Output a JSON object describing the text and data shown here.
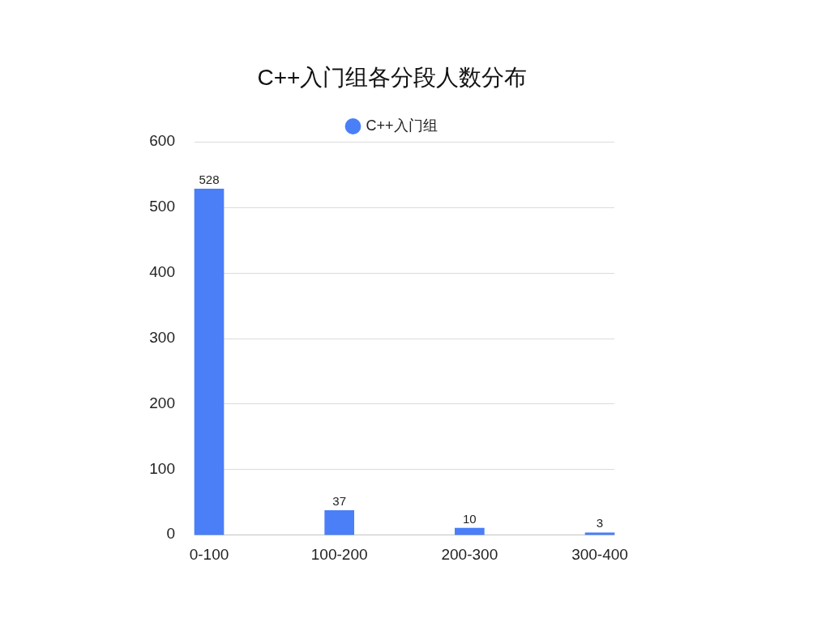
{
  "chart_data": {
    "type": "bar",
    "title": "C++入门组各分段人数分布",
    "categories": [
      "0-100",
      "100-200",
      "200-300",
      "300-400"
    ],
    "series": [
      {
        "name": "C++入门组",
        "color": "#4a7ff8",
        "values": [
          528,
          37,
          10,
          3
        ]
      }
    ],
    "ylim": [
      0,
      600
    ],
    "yticks": [
      0,
      100,
      200,
      300,
      400,
      500,
      600
    ],
    "grid": "y",
    "legend": "top",
    "data_labels": true
  }
}
